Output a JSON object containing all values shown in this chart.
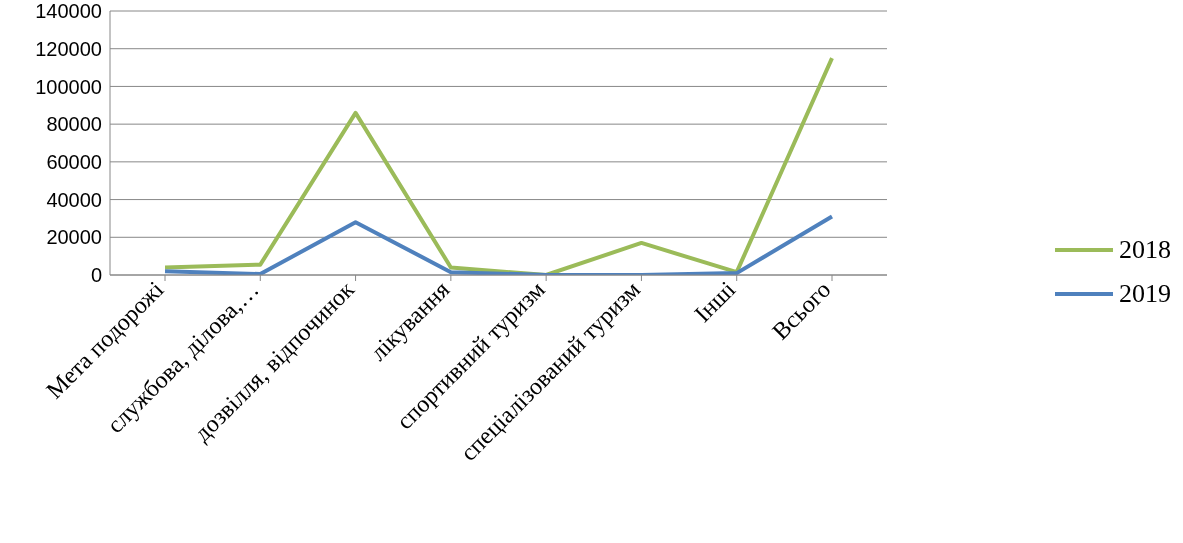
{
  "chart_data": {
    "type": "line",
    "categories": [
      "Мета подорожі",
      "службова, ділова,…",
      "дозвілля, відпочинок",
      "лікування",
      "спортивний туризм",
      "спеціалізований туризм",
      "Інші",
      "Всього"
    ],
    "series": [
      {
        "name": "2018",
        "color": "#9bbb59",
        "values": [
          4000,
          5500,
          86000,
          4000,
          0,
          17000,
          1500,
          115000
        ]
      },
      {
        "name": "2019",
        "color": "#4f81bd",
        "values": [
          2000,
          500,
          28000,
          1500,
          0,
          0,
          1000,
          31000
        ]
      }
    ],
    "ylim": [
      0,
      140000
    ],
    "yticks": [
      0,
      20000,
      40000,
      60000,
      80000,
      100000,
      120000,
      140000
    ],
    "grid": "y",
    "legend": "right",
    "marker": "none",
    "line_style": "solid"
  }
}
